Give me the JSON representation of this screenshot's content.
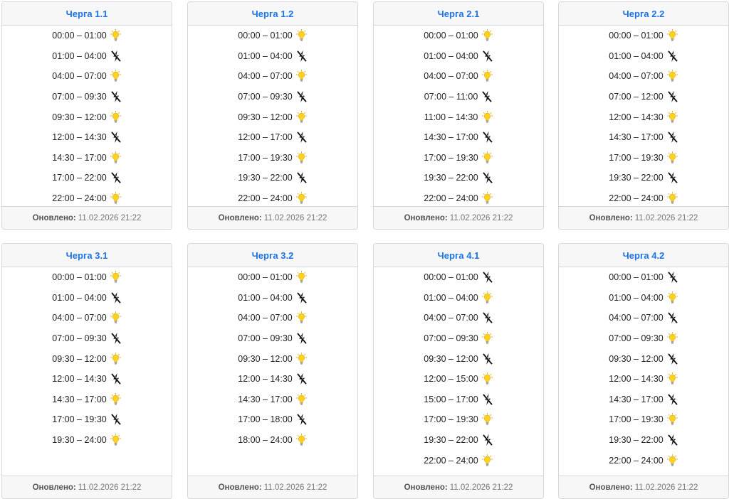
{
  "footer_label": "Оновлено:",
  "queues": [
    {
      "title": "Черга 1.1",
      "updated": "11.02.2026 21:22",
      "slots": [
        {
          "time": "00:00 – 01:00",
          "state": "on"
        },
        {
          "time": "01:00 – 04:00",
          "state": "off"
        },
        {
          "time": "04:00 – 07:00",
          "state": "on"
        },
        {
          "time": "07:00 – 09:30",
          "state": "off"
        },
        {
          "time": "09:30 – 12:00",
          "state": "on"
        },
        {
          "time": "12:00 – 14:30",
          "state": "off"
        },
        {
          "time": "14:30 – 17:00",
          "state": "on"
        },
        {
          "time": "17:00 – 22:00",
          "state": "off"
        },
        {
          "time": "22:00 – 24:00",
          "state": "on"
        }
      ]
    },
    {
      "title": "Черга 1.2",
      "updated": "11.02.2026 21:22",
      "slots": [
        {
          "time": "00:00 – 01:00",
          "state": "on"
        },
        {
          "time": "01:00 – 04:00",
          "state": "off"
        },
        {
          "time": "04:00 – 07:00",
          "state": "on"
        },
        {
          "time": "07:00 – 09:30",
          "state": "off"
        },
        {
          "time": "09:30 – 12:00",
          "state": "on"
        },
        {
          "time": "12:00 – 17:00",
          "state": "off"
        },
        {
          "time": "17:00 – 19:30",
          "state": "on"
        },
        {
          "time": "19:30 – 22:00",
          "state": "off"
        },
        {
          "time": "22:00 – 24:00",
          "state": "on"
        }
      ]
    },
    {
      "title": "Черга 2.1",
      "updated": "11.02.2026 21:22",
      "slots": [
        {
          "time": "00:00 – 01:00",
          "state": "on"
        },
        {
          "time": "01:00 – 04:00",
          "state": "off"
        },
        {
          "time": "04:00 – 07:00",
          "state": "on"
        },
        {
          "time": "07:00 – 11:00",
          "state": "off"
        },
        {
          "time": "11:00 – 14:30",
          "state": "on"
        },
        {
          "time": "14:30 – 17:00",
          "state": "off"
        },
        {
          "time": "17:00 – 19:30",
          "state": "on"
        },
        {
          "time": "19:30 – 22:00",
          "state": "off"
        },
        {
          "time": "22:00 – 24:00",
          "state": "on"
        }
      ]
    },
    {
      "title": "Черга 2.2",
      "updated": "11.02.2026 21:22",
      "slots": [
        {
          "time": "00:00 – 01:00",
          "state": "on"
        },
        {
          "time": "01:00 – 04:00",
          "state": "off"
        },
        {
          "time": "04:00 – 07:00",
          "state": "on"
        },
        {
          "time": "07:00 – 12:00",
          "state": "off"
        },
        {
          "time": "12:00 – 14:30",
          "state": "on"
        },
        {
          "time": "14:30 – 17:00",
          "state": "off"
        },
        {
          "time": "17:00 – 19:30",
          "state": "on"
        },
        {
          "time": "19:30 – 22:00",
          "state": "off"
        },
        {
          "time": "22:00 – 24:00",
          "state": "on"
        }
      ]
    },
    {
      "title": "Черга 3.1",
      "updated": "11.02.2026 21:22",
      "slots": [
        {
          "time": "00:00 – 01:00",
          "state": "on"
        },
        {
          "time": "01:00 – 04:00",
          "state": "off"
        },
        {
          "time": "04:00 – 07:00",
          "state": "on"
        },
        {
          "time": "07:00 – 09:30",
          "state": "off"
        },
        {
          "time": "09:30 – 12:00",
          "state": "on"
        },
        {
          "time": "12:00 – 14:30",
          "state": "off"
        },
        {
          "time": "14:30 – 17:00",
          "state": "on"
        },
        {
          "time": "17:00 – 19:30",
          "state": "off"
        },
        {
          "time": "19:30 – 24:00",
          "state": "on"
        }
      ]
    },
    {
      "title": "Черга 3.2",
      "updated": "11.02.2026 21:22",
      "slots": [
        {
          "time": "00:00 – 01:00",
          "state": "on"
        },
        {
          "time": "01:00 – 04:00",
          "state": "off"
        },
        {
          "time": "04:00 – 07:00",
          "state": "on"
        },
        {
          "time": "07:00 – 09:30",
          "state": "off"
        },
        {
          "time": "09:30 – 12:00",
          "state": "on"
        },
        {
          "time": "12:00 – 14:30",
          "state": "off"
        },
        {
          "time": "14:30 – 17:00",
          "state": "on"
        },
        {
          "time": "17:00 – 18:00",
          "state": "off"
        },
        {
          "time": "18:00 – 24:00",
          "state": "on"
        }
      ]
    },
    {
      "title": "Черга 4.1",
      "updated": "11.02.2026 21:22",
      "slots": [
        {
          "time": "00:00 – 01:00",
          "state": "off"
        },
        {
          "time": "01:00 – 04:00",
          "state": "on"
        },
        {
          "time": "04:00 – 07:00",
          "state": "off"
        },
        {
          "time": "07:00 – 09:30",
          "state": "on"
        },
        {
          "time": "09:30 – 12:00",
          "state": "off"
        },
        {
          "time": "12:00 – 15:00",
          "state": "on"
        },
        {
          "time": "15:00 – 17:00",
          "state": "off"
        },
        {
          "time": "17:00 – 19:30",
          "state": "on"
        },
        {
          "time": "19:30 – 22:00",
          "state": "off"
        },
        {
          "time": "22:00 – 24:00",
          "state": "on"
        }
      ]
    },
    {
      "title": "Черга 4.2",
      "updated": "11.02.2026 21:22",
      "slots": [
        {
          "time": "00:00 – 01:00",
          "state": "off"
        },
        {
          "time": "01:00 – 04:00",
          "state": "on"
        },
        {
          "time": "04:00 – 07:00",
          "state": "off"
        },
        {
          "time": "07:00 – 09:30",
          "state": "on"
        },
        {
          "time": "09:30 – 12:00",
          "state": "off"
        },
        {
          "time": "12:00 – 14:30",
          "state": "on"
        },
        {
          "time": "14:30 – 17:00",
          "state": "off"
        },
        {
          "time": "17:00 – 19:30",
          "state": "on"
        },
        {
          "time": "19:30 – 22:00",
          "state": "off"
        },
        {
          "time": "22:00 – 24:00",
          "state": "on"
        }
      ]
    }
  ],
  "icons": {
    "on": "lightbulb-icon",
    "off": "power-off-icon"
  },
  "colors": {
    "title": "#1a73e8",
    "bulb": "#ffd21f",
    "off": "#111111"
  }
}
